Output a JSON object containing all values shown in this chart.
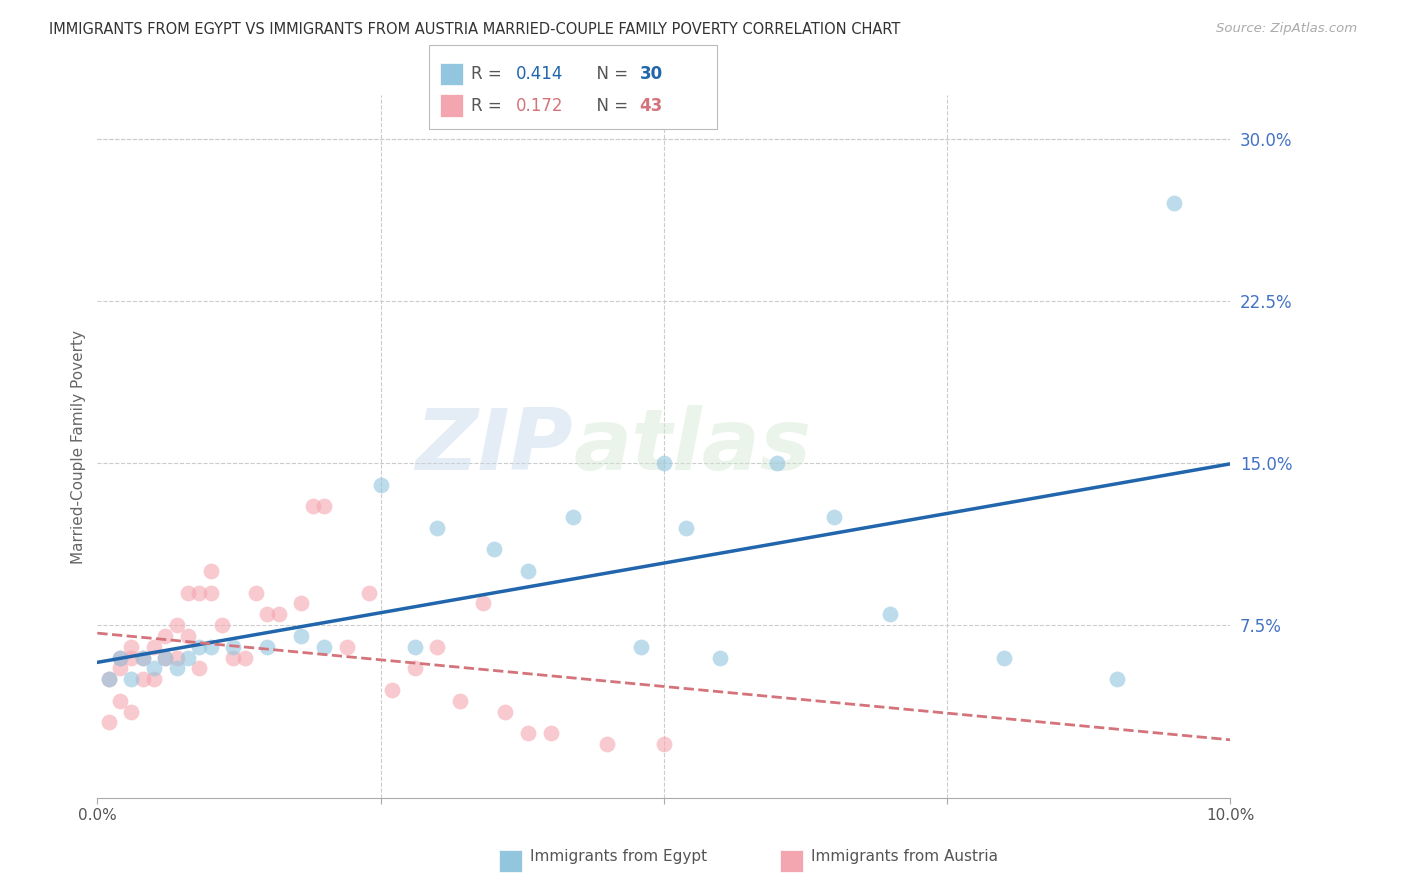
{
  "title": "IMMIGRANTS FROM EGYPT VS IMMIGRANTS FROM AUSTRIA MARRIED-COUPLE FAMILY POVERTY CORRELATION CHART",
  "source": "Source: ZipAtlas.com",
  "ylabel": "Married-Couple Family Poverty",
  "xlim": [
    0.0,
    0.1
  ],
  "ylim": [
    -0.005,
    0.32
  ],
  "xticks": [
    0.0,
    0.025,
    0.05,
    0.075,
    0.1
  ],
  "yticks_right": [
    0.075,
    0.15,
    0.225,
    0.3
  ],
  "ytick_labels_right": [
    "7.5%",
    "15.0%",
    "22.5%",
    "30.0%"
  ],
  "xtick_labels": [
    "0.0%",
    "",
    "",
    "",
    "10.0%"
  ],
  "watermark": "ZIPatlas",
  "egypt_color": "#92c5de",
  "austria_color": "#f4a6b0",
  "egypt_line_color": "#2166ac",
  "austria_line_color": "#d4737a",
  "egypt_label": "Immigrants from Egypt",
  "austria_label": "Immigrants from Austria",
  "egypt_x": [
    0.001,
    0.002,
    0.003,
    0.004,
    0.005,
    0.006,
    0.007,
    0.008,
    0.009,
    0.01,
    0.012,
    0.015,
    0.018,
    0.02,
    0.025,
    0.028,
    0.03,
    0.035,
    0.038,
    0.042,
    0.048,
    0.05,
    0.052,
    0.055,
    0.06,
    0.065,
    0.07,
    0.08,
    0.09,
    0.095
  ],
  "egypt_y": [
    0.05,
    0.06,
    0.05,
    0.06,
    0.055,
    0.06,
    0.055,
    0.06,
    0.065,
    0.065,
    0.065,
    0.065,
    0.07,
    0.065,
    0.14,
    0.065,
    0.12,
    0.11,
    0.1,
    0.125,
    0.065,
    0.15,
    0.12,
    0.06,
    0.15,
    0.125,
    0.08,
    0.06,
    0.05,
    0.27
  ],
  "austria_x": [
    0.001,
    0.001,
    0.002,
    0.002,
    0.002,
    0.003,
    0.003,
    0.003,
    0.004,
    0.004,
    0.005,
    0.005,
    0.006,
    0.006,
    0.007,
    0.007,
    0.008,
    0.008,
    0.009,
    0.009,
    0.01,
    0.01,
    0.011,
    0.012,
    0.013,
    0.014,
    0.015,
    0.016,
    0.018,
    0.019,
    0.02,
    0.022,
    0.024,
    0.026,
    0.028,
    0.03,
    0.032,
    0.034,
    0.036,
    0.038,
    0.04,
    0.045,
    0.05
  ],
  "austria_y": [
    0.03,
    0.05,
    0.04,
    0.055,
    0.06,
    0.035,
    0.06,
    0.065,
    0.05,
    0.06,
    0.05,
    0.065,
    0.06,
    0.07,
    0.06,
    0.075,
    0.07,
    0.09,
    0.055,
    0.09,
    0.09,
    0.1,
    0.075,
    0.06,
    0.06,
    0.09,
    0.08,
    0.08,
    0.085,
    0.13,
    0.13,
    0.065,
    0.09,
    0.045,
    0.055,
    0.065,
    0.04,
    0.085,
    0.035,
    0.025,
    0.025,
    0.02,
    0.02
  ],
  "background_color": "#ffffff",
  "grid_color": "#cccccc",
  "title_color": "#333333",
  "right_label_color": "#4472c4",
  "dot_alpha": 0.6,
  "dot_size": 130
}
